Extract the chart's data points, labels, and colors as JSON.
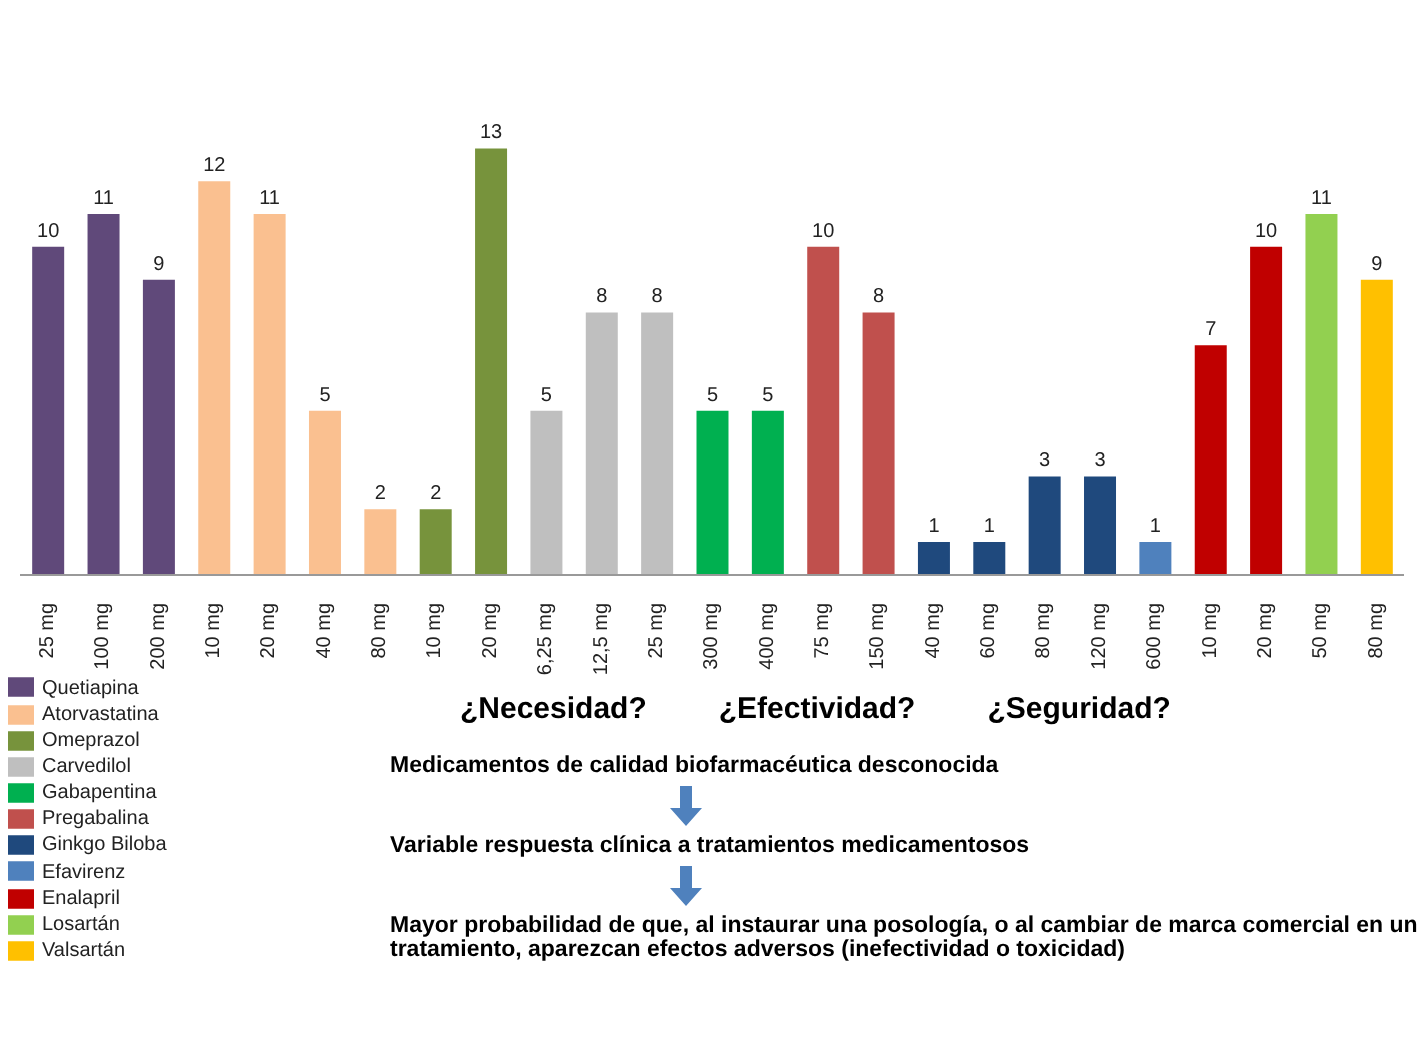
{
  "chart_data": {
    "type": "bar",
    "stacked": true,
    "data_labels": true,
    "legend": "bottom left",
    "grid": false,
    "categories": [
      "25 mg",
      "100 mg",
      "200 mg",
      "10 mg",
      "20 mg",
      "40 mg",
      "80 mg",
      "10 mg",
      "20 mg",
      "6,25 mg",
      "12,5 mg",
      "25 mg",
      "300 mg",
      "400 mg",
      "75 mg",
      "150 mg",
      "40 mg",
      "60 mg",
      "80 mg",
      "120 mg",
      "600 mg",
      "10 mg",
      "20 mg",
      "50 mg",
      "80 mg"
    ],
    "series": [
      {
        "name": "Quetiapina",
        "color": "#60497a",
        "values": [
          10,
          11,
          9,
          null,
          null,
          null,
          null,
          null,
          null,
          null,
          null,
          null,
          null,
          null,
          null,
          null,
          null,
          null,
          null,
          null,
          null,
          null,
          null,
          null,
          null
        ]
      },
      {
        "name": "Atorvastatina",
        "color": "#fac090",
        "values": [
          null,
          null,
          null,
          12,
          11,
          5,
          2,
          null,
          null,
          null,
          null,
          null,
          null,
          null,
          null,
          null,
          null,
          null,
          null,
          null,
          null,
          null,
          null,
          null,
          null
        ]
      },
      {
        "name": "Omeprazol",
        "color": "#77933c",
        "values": [
          null,
          null,
          null,
          null,
          null,
          null,
          null,
          2,
          13,
          null,
          null,
          null,
          null,
          null,
          null,
          null,
          null,
          null,
          null,
          null,
          null,
          null,
          null,
          null,
          null
        ]
      },
      {
        "name": "Carvedilol",
        "color": "#bfbfbf",
        "values": [
          null,
          null,
          null,
          null,
          null,
          null,
          null,
          null,
          null,
          5,
          8,
          8,
          null,
          null,
          null,
          null,
          null,
          null,
          null,
          null,
          null,
          null,
          null,
          null,
          null
        ]
      },
      {
        "name": "Gabapentina",
        "color": "#00b050",
        "values": [
          null,
          null,
          null,
          null,
          null,
          null,
          null,
          null,
          null,
          null,
          null,
          null,
          5,
          5,
          null,
          null,
          null,
          null,
          null,
          null,
          null,
          null,
          null,
          null,
          null
        ]
      },
      {
        "name": "Pregabalina",
        "color": "#c0504d",
        "values": [
          null,
          null,
          null,
          null,
          null,
          null,
          null,
          null,
          null,
          null,
          null,
          null,
          null,
          null,
          10,
          8,
          null,
          null,
          null,
          null,
          null,
          null,
          null,
          null,
          null
        ]
      },
      {
        "name": "Ginkgo Biloba",
        "color": "#1f497d",
        "values": [
          null,
          null,
          null,
          null,
          null,
          null,
          null,
          null,
          null,
          null,
          null,
          null,
          null,
          null,
          null,
          null,
          1,
          1,
          3,
          3,
          null,
          null,
          null,
          null,
          null
        ]
      },
      {
        "name": "Efavirenz",
        "color": "#4f81bd",
        "values": [
          null,
          null,
          null,
          null,
          null,
          null,
          null,
          null,
          null,
          null,
          null,
          null,
          null,
          null,
          null,
          null,
          null,
          null,
          null,
          null,
          1,
          null,
          null,
          null,
          null
        ]
      },
      {
        "name": "Enalapril",
        "color": "#c00000",
        "values": [
          null,
          null,
          null,
          null,
          null,
          null,
          null,
          null,
          null,
          null,
          null,
          null,
          null,
          null,
          null,
          null,
          null,
          null,
          null,
          null,
          null,
          7,
          10,
          null,
          null
        ]
      },
      {
        "name": "Losartán",
        "color": "#92d050",
        "values": [
          null,
          null,
          null,
          null,
          null,
          null,
          null,
          null,
          null,
          null,
          null,
          null,
          null,
          null,
          null,
          null,
          null,
          null,
          null,
          null,
          null,
          null,
          null,
          11,
          null
        ]
      },
      {
        "name": "Valsartán",
        "color": "#ffc000",
        "values": [
          null,
          null,
          null,
          null,
          null,
          null,
          null,
          null,
          null,
          null,
          null,
          null,
          null,
          null,
          null,
          null,
          null,
          null,
          null,
          null,
          null,
          null,
          null,
          null,
          9
        ]
      }
    ],
    "annotations": [
      "¿Necesidad?",
      "¿Efectividad?",
      "¿Seguridad?",
      "Medicamentos de calidad biofarmacéutica desconocida",
      "Variable respuesta clínica a tratamientos medicamentosos",
      "Mayor probabilidad de que, al instaurar una posología, o al cambiar de marca comercial en un tratamiento, aparezcan efectos adversos (inefectividad o toxicidad)"
    ]
  }
}
